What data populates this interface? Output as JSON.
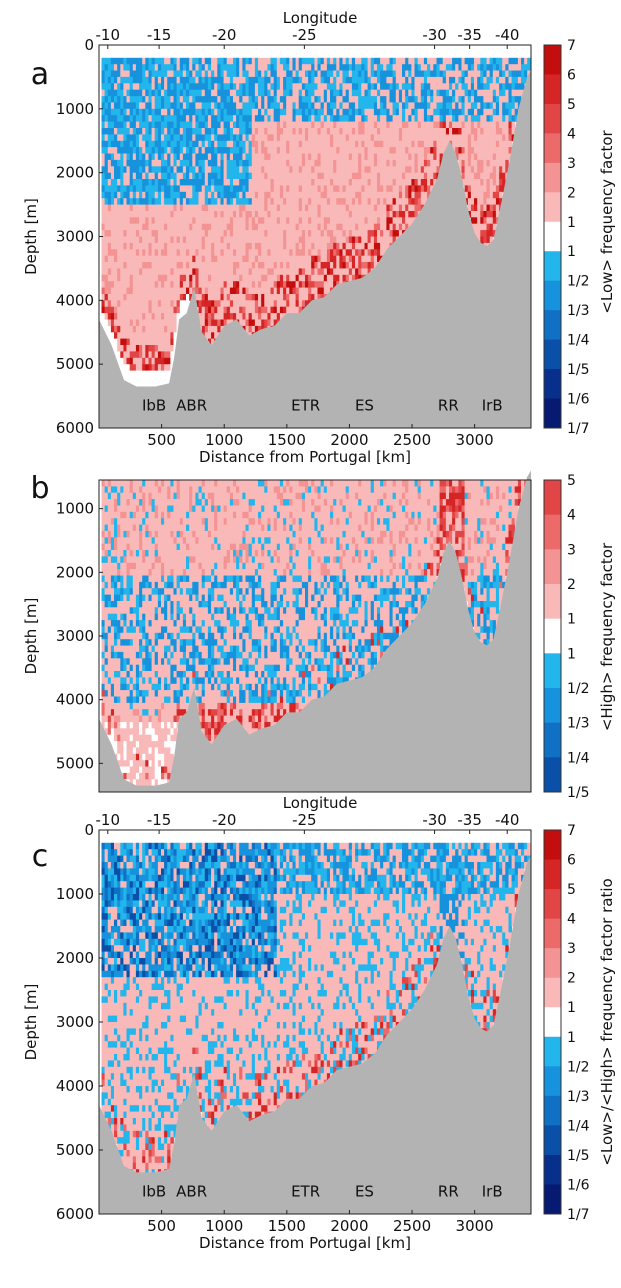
{
  "chart_data": [
    {
      "panel": "a",
      "type": "heatmap",
      "xlabel": "Distance from Portugal [km]",
      "ylabel": "Depth [m]",
      "top_axis_label": "Longitude",
      "x_ticks": [
        500,
        1000,
        1500,
        2000,
        2500,
        3000
      ],
      "y_ticks": [
        0,
        1000,
        2000,
        3000,
        4000,
        5000,
        6000
      ],
      "top_ticks": [
        "-10",
        "-15",
        "-20",
        "-25",
        "-30",
        "-35",
        "-40"
      ],
      "top_tick_km": [
        70,
        480,
        1000,
        1640,
        2680,
        2960,
        3260
      ],
      "xlim": [
        0,
        3450
      ],
      "ylim": [
        6000,
        0
      ],
      "data_top_depth": 200,
      "regions": [
        "IbB",
        "ABR",
        "ETR",
        "ES",
        "RR",
        "IrB"
      ],
      "region_km": [
        440,
        740,
        1650,
        2120,
        2790,
        3140
      ],
      "region_depth": 5650,
      "colorbar_label": "<Low> frequency factor",
      "colorbar_upper": [
        "7",
        "6",
        "5",
        "4",
        "3",
        "2",
        "1"
      ],
      "colorbar_lower": [
        "1",
        "1/2",
        "1/3",
        "1/4",
        "1/5",
        "1/6",
        "1/7"
      ],
      "pattern": "upper_blue",
      "seed": 11
    },
    {
      "panel": "b",
      "type": "heatmap",
      "xlabel": "",
      "ylabel": "Depth [m]",
      "top_axis_label": "",
      "x_ticks": [],
      "y_ticks": [
        1000,
        2000,
        3000,
        4000,
        5000
      ],
      "top_ticks": [],
      "top_tick_km": [],
      "xlim": [
        0,
        3450
      ],
      "ylim": [
        5450,
        550
      ],
      "data_top_depth": 550,
      "regions": [],
      "region_km": [],
      "region_depth": 0,
      "colorbar_label": "<High> frequency factor",
      "colorbar_upper": [
        "5",
        "4",
        "3",
        "2",
        "1"
      ],
      "colorbar_lower": [
        "1",
        "1/2",
        "1/3",
        "1/4",
        "1/5"
      ],
      "pattern": "mostly_red",
      "seed": 23
    },
    {
      "panel": "c",
      "type": "heatmap",
      "xlabel": "Distance from Portugal [km]",
      "ylabel": "Depth [m]",
      "top_axis_label": "Longitude",
      "x_ticks": [
        500,
        1000,
        1500,
        2000,
        2500,
        3000
      ],
      "y_ticks": [
        0,
        1000,
        2000,
        3000,
        4000,
        5000,
        6000
      ],
      "top_ticks": [
        "-10",
        "-15",
        "-20",
        "-25",
        "-30",
        "-35",
        "-40"
      ],
      "top_tick_km": [
        70,
        480,
        1000,
        1640,
        2680,
        2960,
        3260
      ],
      "xlim": [
        0,
        3450
      ],
      "ylim": [
        6000,
        0
      ],
      "data_top_depth": 200,
      "regions": [
        "IbB",
        "ABR",
        "ETR",
        "ES",
        "RR",
        "IrB"
      ],
      "region_km": [
        440,
        740,
        1650,
        2120,
        2790,
        3140
      ],
      "region_depth": 5650,
      "colorbar_label": "<Low>/<High> frequency factor ratio",
      "colorbar_upper": [
        "7",
        "6",
        "5",
        "4",
        "3",
        "2",
        "1"
      ],
      "colorbar_lower": [
        "1",
        "1/2",
        "1/3",
        "1/4",
        "1/5",
        "1/6",
        "1/7"
      ],
      "pattern": "upper_darkblue",
      "seed": 37
    }
  ],
  "colors": {
    "seabed": "#b3b3b3",
    "red_scale": [
      "#f9b9b9",
      "#f39393",
      "#ec6a6a",
      "#e14545",
      "#d52525",
      "#c40e0e"
    ],
    "blue_scale": [
      "#22b6ec",
      "#1792dc",
      "#0f70c4",
      "#0a4fa8",
      "#07308c",
      "#061a72"
    ]
  }
}
